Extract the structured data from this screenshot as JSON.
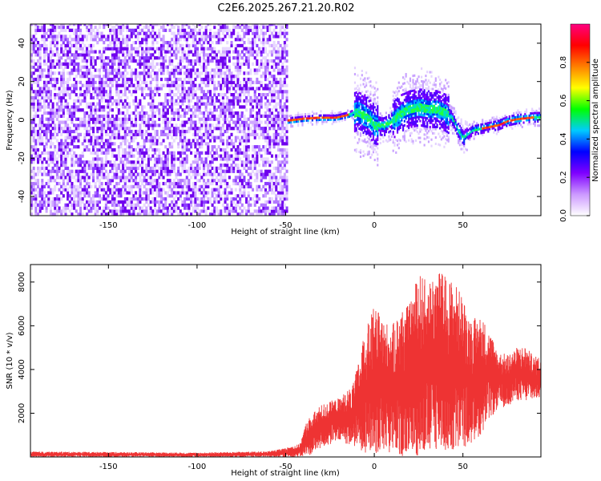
{
  "title": "C2E6.2025.267.21.20.R02",
  "chart_data": [
    {
      "type": "heatmap",
      "title": "C2E6.2025.267.21.20.R02",
      "xlabel": "Height of straight line (km)",
      "ylabel": "Frequency (Hz)",
      "xlim": [
        -194,
        94
      ],
      "ylim": [
        -50,
        50
      ],
      "x_ticks": [
        -150,
        -100,
        -50,
        0,
        50
      ],
      "y_ticks": [
        -40,
        -20,
        0,
        20,
        40
      ],
      "grid": false,
      "noise_region_x": [
        -194,
        -49
      ],
      "signal_ridge": {
        "x": [
          -49,
          -40,
          -30,
          -22,
          -15,
          -10,
          -5,
          0,
          5,
          10,
          15,
          20,
          25,
          30,
          35,
          40,
          44,
          47,
          50,
          55,
          60,
          65,
          70,
          75,
          80,
          85,
          90,
          94
        ],
        "frequency": [
          -1,
          0,
          0.5,
          0.5,
          2,
          4,
          2,
          -3,
          -4,
          -1,
          3,
          5,
          6,
          5,
          5,
          3,
          0,
          -6,
          -10,
          -6,
          -5,
          -4,
          -3,
          -1,
          0,
          0.5,
          1,
          1
        ]
      },
      "colorbar": {
        "label": "Normalized spectral amplitude",
        "range": [
          0.0,
          1.0
        ],
        "ticks": [
          0.0,
          0.2,
          0.4,
          0.6,
          0.8
        ],
        "tick_labels": [
          "0.0",
          "0.2",
          "0.4",
          "0.6",
          "0.8"
        ],
        "colors": [
          "#ffffff",
          "#cc99ff",
          "#7f00ff",
          "#0000ff",
          "#00ccff",
          "#00ff00",
          "#ffff00",
          "#ff8000",
          "#ff0000",
          "#ff0080"
        ]
      }
    },
    {
      "type": "line",
      "xlabel": "Height of straight line (km)",
      "ylabel": "SNR (10 * v/v)",
      "xlim": [
        -194,
        94
      ],
      "ylim": [
        0,
        8800
      ],
      "x_ticks": [
        -150,
        -100,
        -50,
        0,
        50
      ],
      "y_ticks": [
        2000,
        4000,
        6000,
        8000
      ],
      "grid": false,
      "series": [
        {
          "name": "SNR",
          "color": "#ee3333",
          "envelope_x": [
            -194,
            -150,
            -100,
            -60,
            -50,
            -42,
            -38,
            -30,
            -20,
            -12,
            -5,
            0,
            5,
            10,
            15,
            20,
            25,
            30,
            35,
            40,
            45,
            50,
            55,
            60,
            65,
            70,
            75,
            80,
            85,
            90,
            94
          ],
          "envelope_max": [
            250,
            230,
            200,
            260,
            420,
            600,
            1700,
            2400,
            2700,
            3300,
            5800,
            6900,
            6300,
            6000,
            6800,
            7000,
            8500,
            8000,
            8700,
            8300,
            8100,
            7300,
            6300,
            6500,
            5800,
            4800,
            4700,
            5000,
            5100,
            4600,
            4600
          ],
          "envelope_min": [
            0,
            0,
            0,
            0,
            0,
            0,
            0,
            400,
            700,
            500,
            200,
            0,
            300,
            100,
            0,
            200,
            0,
            0,
            300,
            200,
            0,
            400,
            600,
            1000,
            1700,
            2200,
            2300,
            2600,
            2500,
            2600,
            2700
          ]
        }
      ]
    }
  ]
}
